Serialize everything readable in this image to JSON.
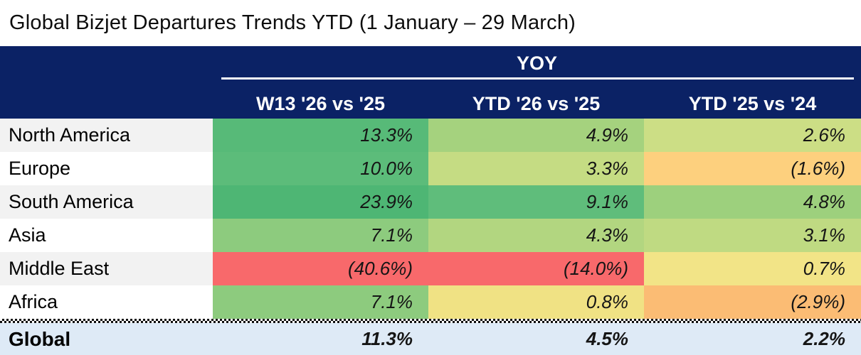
{
  "title": "Global Bizjet Departures Trends YTD (1 January – 29 March)",
  "table": {
    "group_header": "YOY",
    "columns": [
      "W13 '26 vs '25",
      "YTD '26 vs '25",
      "YTD '25 vs '24"
    ],
    "rows": [
      {
        "region": "North America",
        "display": [
          "13.3%",
          "4.9%",
          "2.6%"
        ],
        "colors": [
          "#57BA78",
          "#A5D27E",
          "#CCDE85"
        ]
      },
      {
        "region": "Europe",
        "display": [
          "10.0%",
          "3.3%",
          "(1.6%)"
        ],
        "colors": [
          "#5CBC7A",
          "#C5DC83",
          "#FDD07E"
        ]
      },
      {
        "region": "South America",
        "display": [
          "23.9%",
          "9.1%",
          "4.8%"
        ],
        "colors": [
          "#4EB674",
          "#5FBD7B",
          "#9DD07D"
        ]
      },
      {
        "region": "Asia",
        "display": [
          "7.1%",
          "4.3%",
          "3.1%"
        ],
        "colors": [
          "#8DCB7E",
          "#B2D680",
          "#BFDA82"
        ]
      },
      {
        "region": "Middle East",
        "display": [
          "(40.6%)",
          "(14.0%)",
          "0.7%"
        ],
        "colors": [
          "#F8696B",
          "#F8696B",
          "#F2E487"
        ]
      },
      {
        "region": "Africa",
        "display": [
          "7.1%",
          "0.8%",
          "(2.9%)"
        ],
        "colors": [
          "#8DCB7E",
          "#F0E284",
          "#FBBC74"
        ]
      }
    ],
    "total": {
      "region": "Global",
      "display": [
        "11.3%",
        "4.5%",
        "2.2%"
      ]
    }
  },
  "colors": {
    "header_bg": "#0B2265",
    "header_text": "#FFFFFF",
    "row_stripe": "#F2F2F2",
    "total_row_bg": "#DEEAF6",
    "strong_positive": "#4EB674",
    "strong_negative": "#F8696B",
    "neutral_yellow": "#F2E487"
  },
  "chart_data": {
    "type": "table",
    "title": "Global Bizjet Departures Trends YTD (1 January – 29 March)",
    "group_header": "YOY",
    "columns": [
      "W13 '26 vs '25",
      "YTD '26 vs '25",
      "YTD '25 vs '24"
    ],
    "rows": [
      {
        "region": "North America",
        "values_pct": [
          13.3,
          4.9,
          2.6
        ]
      },
      {
        "region": "Europe",
        "values_pct": [
          10.0,
          3.3,
          -1.6
        ]
      },
      {
        "region": "South America",
        "values_pct": [
          23.9,
          9.1,
          4.8
        ]
      },
      {
        "region": "Asia",
        "values_pct": [
          7.1,
          4.3,
          3.1
        ]
      },
      {
        "region": "Middle East",
        "values_pct": [
          -40.6,
          -14.0,
          0.7
        ]
      },
      {
        "region": "Africa",
        "values_pct": [
          7.1,
          0.8,
          -2.9
        ]
      }
    ],
    "total_row": {
      "region": "Global",
      "values_pct": [
        11.3,
        4.5,
        2.2
      ]
    },
    "layout_hints": "negative values shown in parentheses; cells shaded red-yellow-green by value; total row on light blue"
  }
}
